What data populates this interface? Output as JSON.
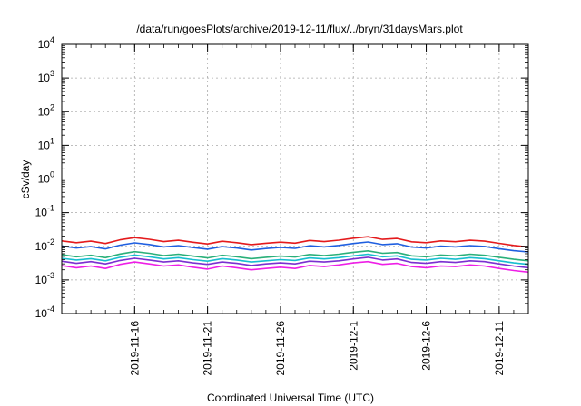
{
  "chart_data": {
    "type": "line",
    "title": "/data/run/goesPlots/archive/2019-12-11/flux/../bryn/31daysMars.plot",
    "xlabel": "Coordinated Universal Time (UTC)",
    "ylabel": "cSv/day",
    "y_scale": "log",
    "ylim": [
      0.0001,
      10000
    ],
    "y_ticks": [
      {
        "value": 0.0001,
        "base": "10",
        "exp": "-4"
      },
      {
        "value": 0.001,
        "base": "10",
        "exp": "-3"
      },
      {
        "value": 0.01,
        "base": "10",
        "exp": "-2"
      },
      {
        "value": 0.1,
        "base": "10",
        "exp": "-1"
      },
      {
        "value": 1,
        "base": "10",
        "exp": "0"
      },
      {
        "value": 10,
        "base": "10",
        "exp": "1"
      },
      {
        "value": 100,
        "base": "10",
        "exp": "2"
      },
      {
        "value": 1000,
        "base": "10",
        "exp": "3"
      },
      {
        "value": 10000,
        "base": "10",
        "exp": "4"
      }
    ],
    "xlim": [
      "2019-11-11",
      "2019-12-13"
    ],
    "x_ticks": [
      "2019-11-16",
      "2019-11-21",
      "2019-11-26",
      "2019-12-1",
      "2019-12-6",
      "2019-12-11"
    ],
    "grid": true,
    "series": [
      {
        "color": "#e41a1c",
        "start": "2019-11-11",
        "step_days": 1,
        "values": [
          0.0145,
          0.0128,
          0.0142,
          0.0121,
          0.0156,
          0.0181,
          0.0162,
          0.0138,
          0.0151,
          0.0132,
          0.0117,
          0.0141,
          0.0128,
          0.0112,
          0.0123,
          0.0133,
          0.0124,
          0.0149,
          0.0138,
          0.0152,
          0.0174,
          0.0192,
          0.0161,
          0.0171,
          0.0136,
          0.0128,
          0.0145,
          0.0137,
          0.0151,
          0.0142,
          0.0122,
          0.0106,
          0.0095
        ]
      },
      {
        "color": "#1f5fe0",
        "start": "2019-11-11",
        "step_days": 1,
        "values": [
          0.0102,
          0.0089,
          0.0098,
          0.0084,
          0.0108,
          0.0126,
          0.0113,
          0.0096,
          0.0105,
          0.0092,
          0.0082,
          0.0098,
          0.0089,
          0.0078,
          0.0086,
          0.0093,
          0.0087,
          0.0104,
          0.0096,
          0.0106,
          0.0121,
          0.0134,
          0.0112,
          0.0119,
          0.0095,
          0.0089,
          0.0101,
          0.0096,
          0.0105,
          0.0099,
          0.0085,
          0.0074,
          0.0068
        ]
      },
      {
        "color": "#2ab07a",
        "start": "2019-11-11",
        "step_days": 1,
        "values": [
          0.0056,
          0.0049,
          0.0054,
          0.0046,
          0.0059,
          0.0069,
          0.0062,
          0.0053,
          0.0058,
          0.0051,
          0.0045,
          0.0054,
          0.0049,
          0.0043,
          0.0047,
          0.0051,
          0.0048,
          0.0057,
          0.0053,
          0.0058,
          0.0066,
          0.0073,
          0.0062,
          0.0065,
          0.0052,
          0.0049,
          0.0055,
          0.0052,
          0.0058,
          0.0054,
          0.0047,
          0.0041,
          0.0037
        ]
      },
      {
        "color": "#17becf",
        "start": "2019-11-11",
        "step_days": 1,
        "values": [
          0.0044,
          0.0039,
          0.0043,
          0.0037,
          0.0047,
          0.0055,
          0.0049,
          0.0042,
          0.0046,
          0.004,
          0.0036,
          0.0043,
          0.0039,
          0.0034,
          0.0037,
          0.004,
          0.0038,
          0.0045,
          0.0042,
          0.0046,
          0.0052,
          0.0058,
          0.0049,
          0.0052,
          0.0041,
          0.0039,
          0.0044,
          0.0041,
          0.0046,
          0.0043,
          0.0037,
          0.0032,
          0.0029
        ]
      },
      {
        "color": "#7b2fd0",
        "start": "2019-11-11",
        "step_days": 1,
        "values": [
          0.0036,
          0.0031,
          0.0035,
          0.003,
          0.0038,
          0.0044,
          0.0039,
          0.0034,
          0.0037,
          0.0032,
          0.0029,
          0.0034,
          0.0031,
          0.0027,
          0.003,
          0.0032,
          0.003,
          0.0036,
          0.0034,
          0.0037,
          0.0042,
          0.0047,
          0.0039,
          0.0042,
          0.0033,
          0.0031,
          0.0035,
          0.0033,
          0.0037,
          0.0035,
          0.003,
          0.0026,
          0.0023
        ]
      },
      {
        "color": "#ee1fe6",
        "start": "2019-11-11",
        "step_days": 1,
        "values": [
          0.0027,
          0.0023,
          0.0026,
          0.0022,
          0.0029,
          0.0034,
          0.003,
          0.0026,
          0.0028,
          0.0024,
          0.0021,
          0.0026,
          0.0023,
          0.002,
          0.0022,
          0.0024,
          0.0022,
          0.0027,
          0.0025,
          0.0028,
          0.0032,
          0.0035,
          0.0029,
          0.0031,
          0.0025,
          0.0023,
          0.0026,
          0.0025,
          0.0028,
          0.0026,
          0.0022,
          0.0019,
          0.0017
        ]
      }
    ]
  }
}
